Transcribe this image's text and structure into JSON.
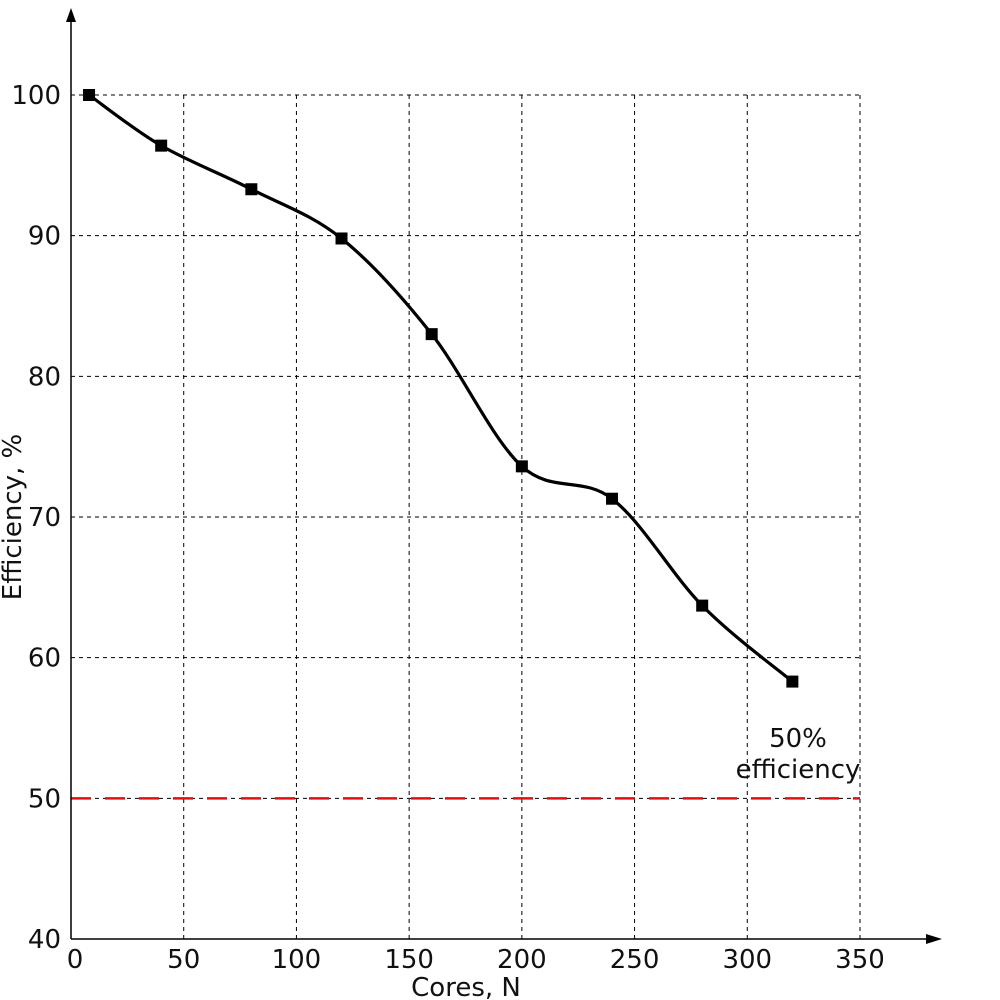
{
  "chart_data": {
    "type": "line",
    "xlabel": "Cores, N",
    "ylabel": "Efficiency, %",
    "xlim": [
      0,
      350
    ],
    "ylim": [
      40,
      100
    ],
    "x_ticks": [
      "0",
      "50",
      "100",
      "150",
      "200",
      "250",
      "300",
      "350"
    ],
    "y_ticks": [
      "40",
      "50",
      "60",
      "70",
      "80",
      "90",
      "100"
    ],
    "grid": true,
    "series": [
      {
        "x": [
          8,
          40,
          80,
          120,
          160,
          200,
          240,
          280,
          320
        ],
        "y": [
          100,
          96.4,
          93.3,
          89.8,
          83.0,
          73.6,
          71.3,
          63.7,
          58.3
        ],
        "color": "#000000",
        "marker": "square"
      }
    ],
    "reference_line": {
      "y": 50,
      "color": "#e01010",
      "style": "dashed",
      "label_lines": [
        "50%",
        "efficiency"
      ]
    }
  }
}
